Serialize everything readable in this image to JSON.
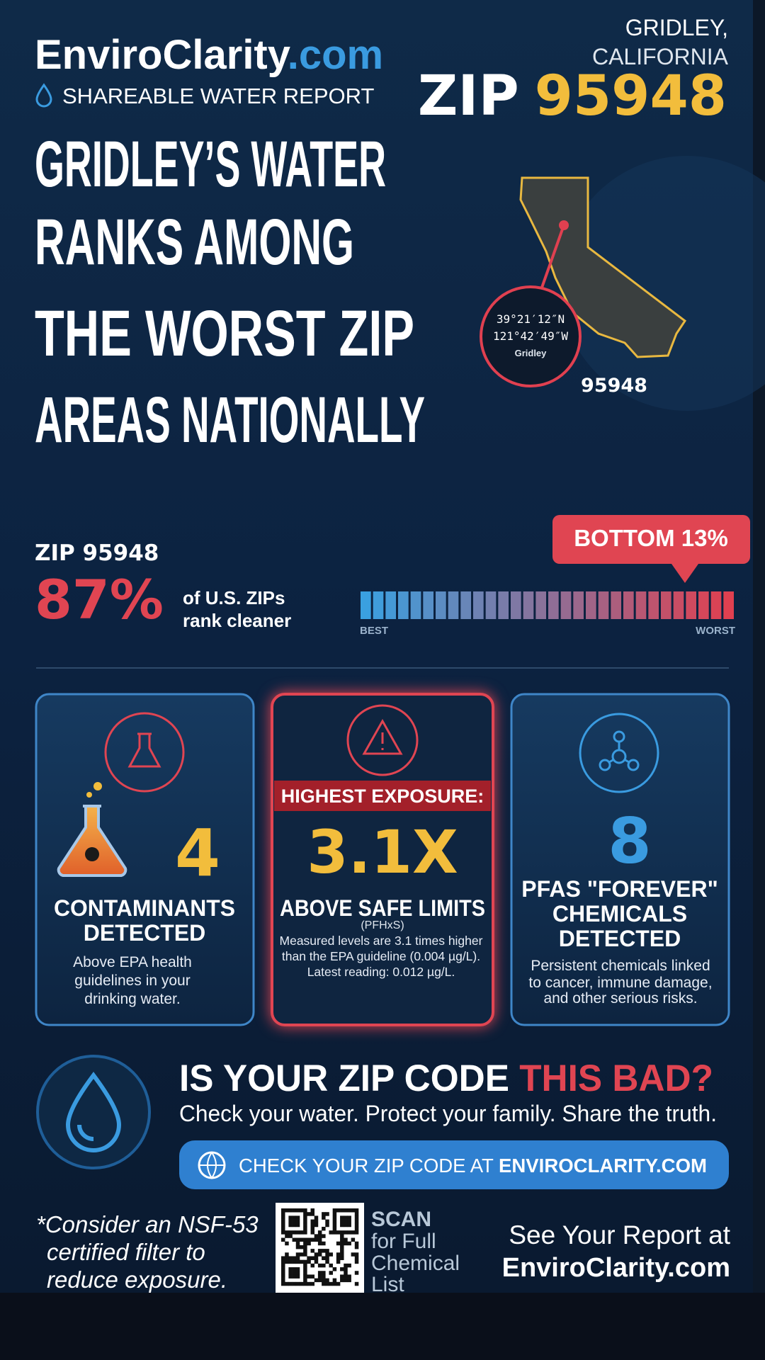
{
  "brand": {
    "name": "EnviroClarity",
    "domain": ".com",
    "tagline": "SHAREABLE WATER REPORT"
  },
  "location": {
    "city": "GRIDLEY,",
    "state": "CALIFORNIA",
    "zip_label": "ZIP",
    "zip": "95948"
  },
  "headline": {
    "lines": [
      "GRIDLEY’S WATER",
      "RANKS AMONG",
      "THE WORST ZIP",
      "AREAS NATIONALLY"
    ]
  },
  "map": {
    "lat": "39°21′12″N",
    "lon": "121°42′49″W",
    "place": "Gridley",
    "zip": "95948"
  },
  "ranking": {
    "zip_label": "ZIP 95948",
    "percent": "87%",
    "caption": [
      "of U.S. ZIPs",
      "rank cleaner"
    ],
    "badge": "BOTTOM 13%",
    "scale_best": "BEST",
    "scale_worst": "WORST"
  },
  "cards": [
    {
      "value": "4",
      "title": [
        "CONTAMINANTS",
        "DETECTED"
      ],
      "description": [
        "Above EPA health",
        "guidelines in your",
        "drinking water."
      ]
    },
    {
      "banner": "HIGHEST EXPOSURE:",
      "value": "3.1X",
      "title": [
        "ABOVE SAFE LIMITS"
      ],
      "subtitle": "(PFHxS)",
      "description": [
        "Measured levels are 3.1 times higher",
        "than the EPA guideline (0.004 µg/L).",
        "Latest reading: 0.012 µg/L."
      ]
    },
    {
      "value": "8",
      "title": [
        "PFAS \"FOREVER\"",
        "CHEMICALS",
        "DETECTED"
      ],
      "description": [
        "Persistent chemicals linked",
        "to cancer, immune damage,",
        "and other serious risks."
      ]
    }
  ],
  "cta": {
    "question": "IS YOUR ZIP CODE ",
    "question_highlight": "THIS BAD?",
    "subtitle": "Check your water. Protect your family. Share the truth.",
    "button_prefix": "CHECK YOUR ZIP CODE AT ",
    "button_domain": "ENVIROCLARITY.COM"
  },
  "footer": {
    "note": [
      "*Consider an NSF-53",
      "certified filter to",
      "reduce exposure."
    ],
    "scan": [
      "SCAN",
      "for Full",
      "Chemical",
      "List"
    ],
    "report": [
      "See Your Report at",
      "EnviroClarity.com"
    ]
  }
}
